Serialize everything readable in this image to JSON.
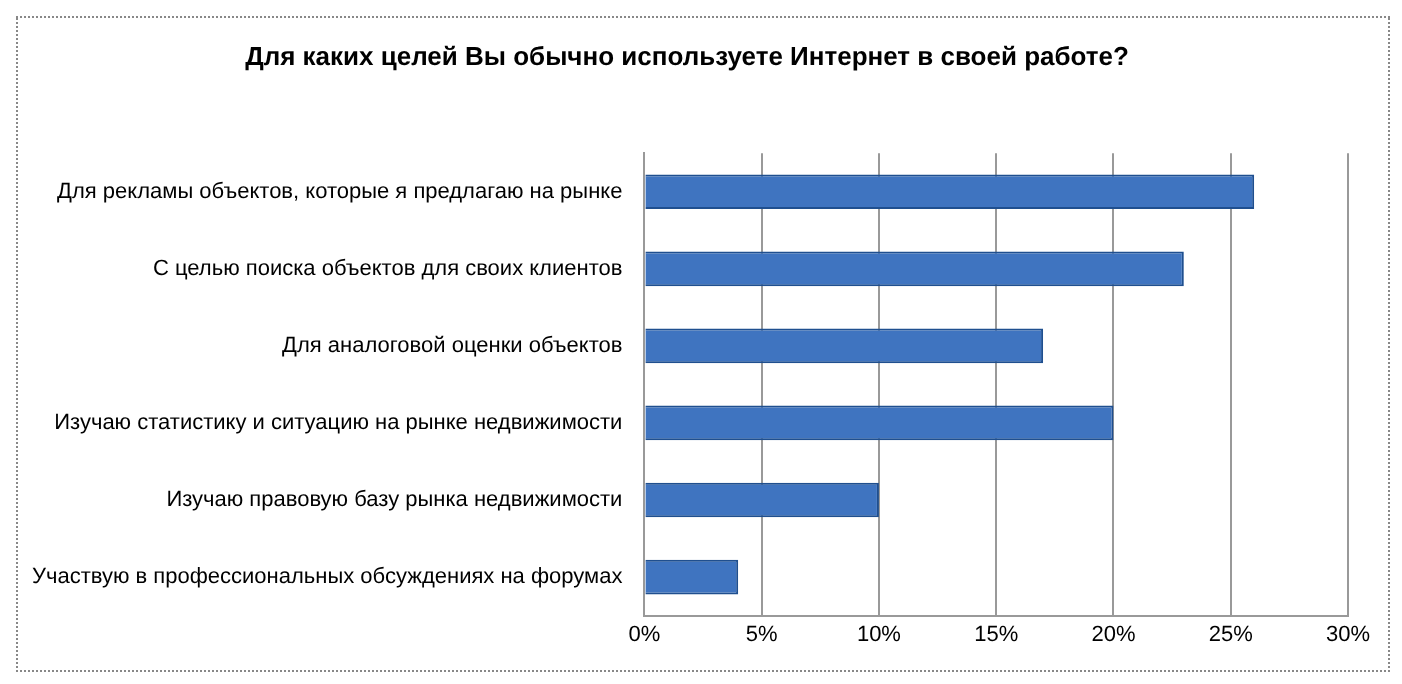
{
  "chart_data": {
    "type": "bar",
    "orientation": "horizontal",
    "title": "Для каких целей Вы обычно используете Интернет в своей работе?",
    "categories": [
      "Для рекламы объектов, которые я предлагаю на рынке",
      "С целью поиска объектов для своих клиентов",
      "Для аналоговой оценки объектов",
      "Изучаю статистику и ситуацию на рынке недвижимости",
      "Изучаю правовую базу рынка недвижимости",
      "Участвую в профессиональных обсуждениях на форумах"
    ],
    "values": [
      26,
      23,
      17,
      20,
      10,
      4
    ],
    "color": "#3f74c0",
    "xlim": [
      0,
      30
    ],
    "xticks": [
      {
        "value": 0,
        "label": "0%"
      },
      {
        "value": 5,
        "label": "5%"
      },
      {
        "value": 10,
        "label": "10%"
      },
      {
        "value": 15,
        "label": "15%"
      },
      {
        "value": 20,
        "label": "20%"
      },
      {
        "value": 25,
        "label": "25%"
      },
      {
        "value": 30,
        "label": "30%"
      }
    ],
    "grid": "x",
    "legend": false
  }
}
